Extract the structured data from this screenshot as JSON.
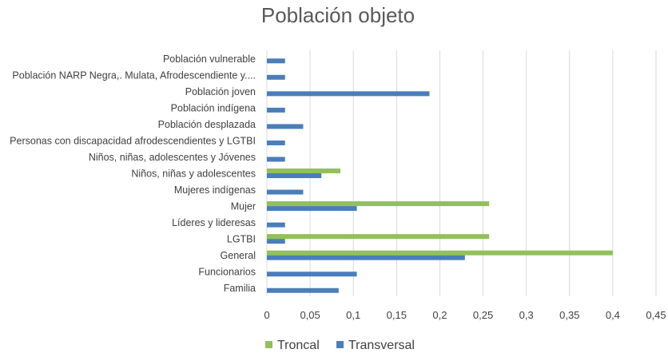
{
  "chart_data": {
    "type": "bar",
    "orientation": "horizontal",
    "title": "Población objeto",
    "xlabel": "",
    "ylabel": "",
    "xlim": [
      0,
      0.45
    ],
    "xticks": [
      "0",
      "0,05",
      "0,1",
      "0,15",
      "0,2",
      "0,25",
      "0,3",
      "0,35",
      "0,4",
      "0,45"
    ],
    "grid": true,
    "legend_position": "bottom",
    "categories": [
      "Población vulnerable",
      "Población NARP Negra,. Mulata, Afrodescendiente y....",
      "Población joven",
      "Población indígena",
      "Población desplazada",
      "Personas con discapacidad afrodescendientes y LGTBI",
      "Niños, niñas, adolescentes y Jóvenes",
      "Niños, niñas y adolescentes",
      "Mujeres indígenas",
      "Mujer",
      "Líderes y lideresas",
      "LGTBI",
      "General",
      "Funcionarios",
      "Familia"
    ],
    "series": [
      {
        "name": "Troncal",
        "color": "#92c05a",
        "values": [
          0,
          0,
          0,
          0,
          0,
          0,
          0,
          0.085,
          0,
          0.257,
          0,
          0.257,
          0.4,
          0,
          0
        ]
      },
      {
        "name": "Transversal",
        "color": "#4a7ebb",
        "values": [
          0.021,
          0.021,
          0.188,
          0.021,
          0.042,
          0.021,
          0.021,
          0.063,
          0.042,
          0.104,
          0.021,
          0.021,
          0.229,
          0.104,
          0.083
        ]
      }
    ]
  }
}
